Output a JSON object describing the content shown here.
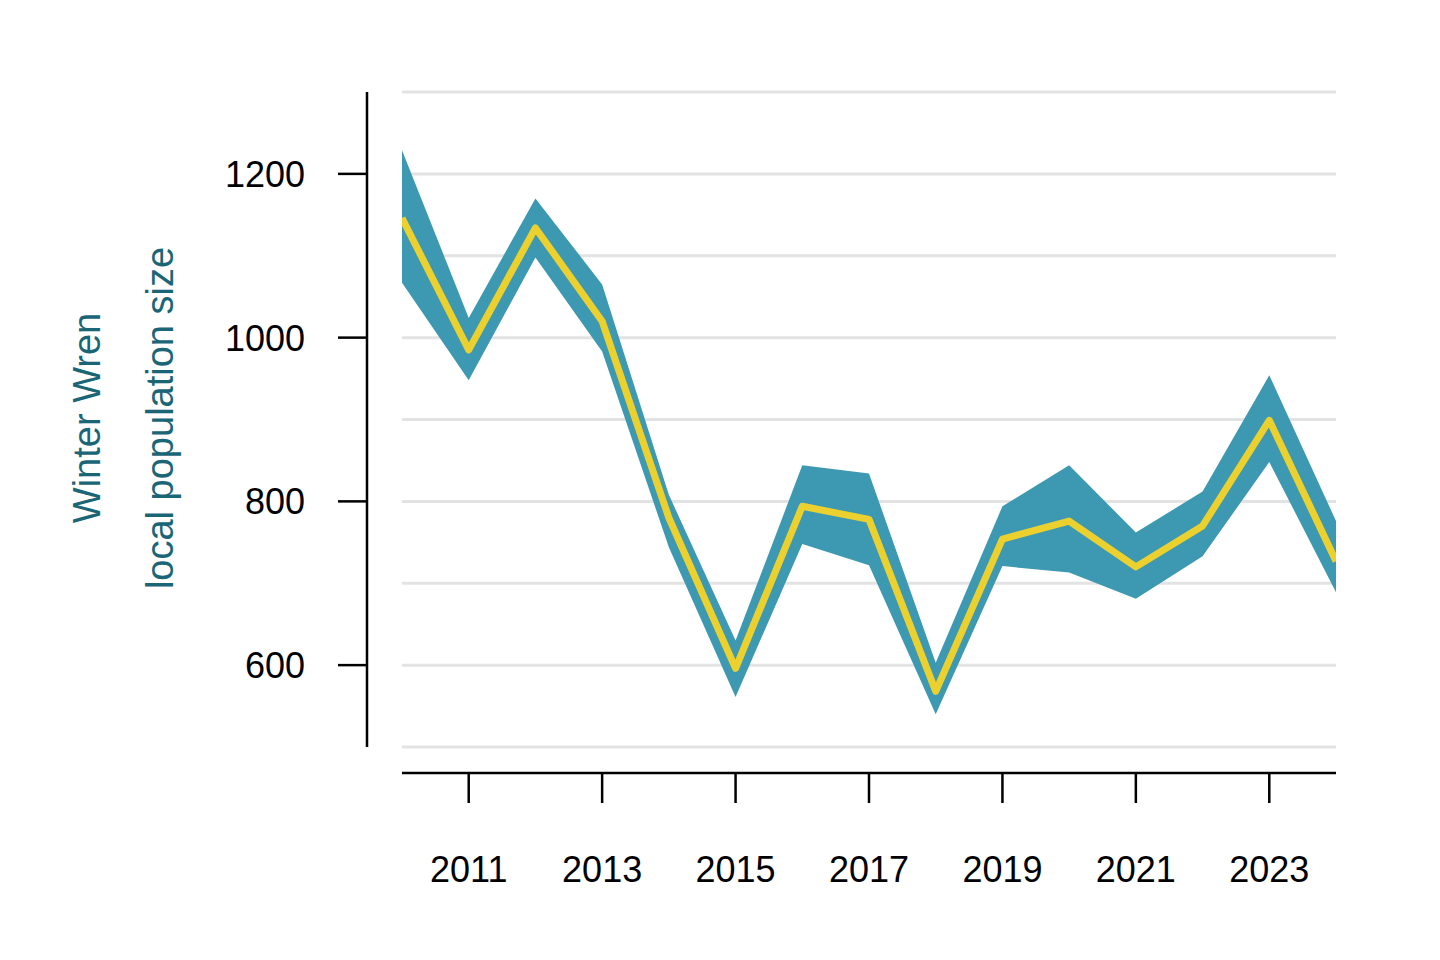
{
  "chart_data": {
    "type": "line",
    "y_label": "Winter Wren\nlocal population size",
    "x": [
      2010,
      2011,
      2012,
      2013,
      2014,
      2015,
      2016,
      2017,
      2018,
      2019,
      2020,
      2021,
      2022,
      2023,
      2024
    ],
    "series": [
      {
        "color": "#ecd12e",
        "values": [
          1146,
          985,
          1134,
          1020,
          780,
          596,
          794,
          778,
          568,
          754,
          776,
          720,
          770,
          899,
          727
        ],
        "lower": [
          1067,
          948,
          1098,
          983,
          744,
          561,
          748,
          722,
          540,
          721,
          713,
          681,
          733,
          848,
          689
        ],
        "upper": [
          1229,
          1024,
          1170,
          1065,
          808,
          630,
          844,
          834,
          603,
          794,
          844,
          762,
          812,
          954,
          776
        ]
      }
    ],
    "xlim": [
      2010,
      2024
    ],
    "xticks": [
      2011,
      2013,
      2015,
      2017,
      2019,
      2021,
      2023
    ],
    "ylim": [
      500,
      1300
    ],
    "yticks": [
      600,
      800,
      1000,
      1200
    ],
    "grid": true
  }
}
